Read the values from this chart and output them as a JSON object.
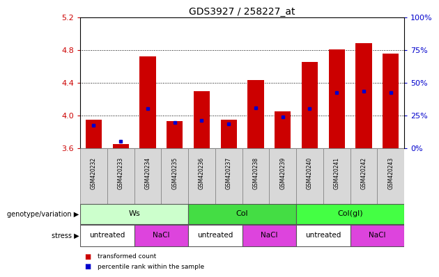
{
  "title": "GDS3927 / 258227_at",
  "samples": [
    "GSM420232",
    "GSM420233",
    "GSM420234",
    "GSM420235",
    "GSM420236",
    "GSM420237",
    "GSM420238",
    "GSM420239",
    "GSM420240",
    "GSM420241",
    "GSM420242",
    "GSM420243"
  ],
  "bar_values": [
    3.95,
    3.65,
    4.72,
    3.93,
    4.3,
    3.95,
    4.43,
    4.05,
    4.65,
    4.81,
    4.88,
    4.76
  ],
  "blue_dot_values": [
    3.88,
    3.68,
    4.08,
    3.91,
    3.94,
    3.9,
    4.09,
    3.98,
    4.08,
    4.28,
    4.3,
    4.28
  ],
  "bar_bottom": 3.6,
  "ylim": [
    3.6,
    5.2
  ],
  "yticks_left": [
    3.6,
    4.0,
    4.4,
    4.8,
    5.2
  ],
  "yticks_right": [
    0,
    25,
    50,
    75,
    100
  ],
  "bar_color": "#cc0000",
  "blue_color": "#0000cc",
  "tick_label_color_left": "#cc0000",
  "tick_label_color_right": "#0000cc",
  "genotype_groups": [
    {
      "label": "Ws",
      "start": 0,
      "end": 4,
      "color": "#ccffcc"
    },
    {
      "label": "Col",
      "start": 4,
      "end": 8,
      "color": "#44dd44"
    },
    {
      "label": "Col(gl)",
      "start": 8,
      "end": 12,
      "color": "#44ff44"
    }
  ],
  "stress_groups": [
    {
      "label": "untreated",
      "start": 0,
      "end": 2,
      "color": "#ffffff"
    },
    {
      "label": "NaCl",
      "start": 2,
      "end": 4,
      "color": "#dd44dd"
    },
    {
      "label": "untreated",
      "start": 4,
      "end": 6,
      "color": "#ffffff"
    },
    {
      "label": "NaCl",
      "start": 6,
      "end": 8,
      "color": "#dd44dd"
    },
    {
      "label": "untreated",
      "start": 8,
      "end": 10,
      "color": "#ffffff"
    },
    {
      "label": "NaCl",
      "start": 10,
      "end": 12,
      "color": "#dd44dd"
    }
  ],
  "genotype_label": "genotype/variation",
  "stress_label": "stress",
  "legend_items": [
    {
      "label": "transformed count",
      "color": "#cc0000"
    },
    {
      "label": "percentile rank within the sample",
      "color": "#0000cc"
    }
  ],
  "bar_width": 0.6
}
